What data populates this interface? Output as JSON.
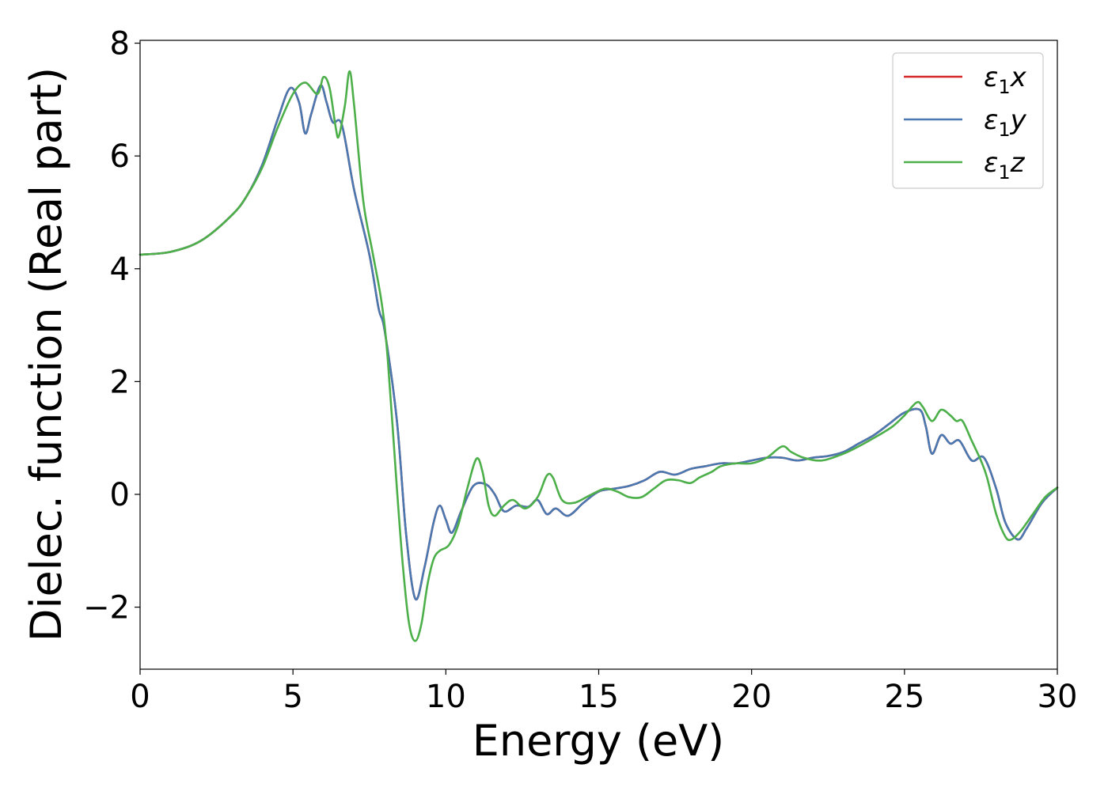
{
  "chart_data": {
    "type": "line",
    "title": "",
    "xlabel": "Energy (eV)",
    "ylabel": "Dielec. function (Real part)",
    "xlim": [
      0,
      30
    ],
    "ylim": [
      -3.1,
      8.05
    ],
    "xticks": [
      0,
      5,
      10,
      15,
      20,
      25,
      30
    ],
    "yticks": [
      8,
      6,
      4,
      2,
      0,
      -2
    ],
    "ytick_labels": [
      "8",
      "6",
      "4",
      "2",
      "0",
      "−2"
    ],
    "grid": false,
    "legend_position": "top-right",
    "series": [
      {
        "name": "ε₁x",
        "legend_main": "ε",
        "legend_sub": "1",
        "legend_tail": "x",
        "color": "#d62728",
        "points": [
          [
            0,
            4.25
          ],
          [
            1,
            4.3
          ],
          [
            2,
            4.5
          ],
          [
            3,
            4.95
          ],
          [
            3.5,
            5.3
          ],
          [
            4,
            5.85
          ],
          [
            4.5,
            6.65
          ],
          [
            4.9,
            7.2
          ],
          [
            5.2,
            6.95
          ],
          [
            5.4,
            6.4
          ],
          [
            5.6,
            6.75
          ],
          [
            5.9,
            7.25
          ],
          [
            6.1,
            6.95
          ],
          [
            6.3,
            6.6
          ],
          [
            6.6,
            6.55
          ],
          [
            7,
            5.4
          ],
          [
            7.5,
            4.25
          ],
          [
            7.8,
            3.3
          ],
          [
            8,
            2.9
          ],
          [
            8.4,
            1.3
          ],
          [
            8.7,
            -0.7
          ],
          [
            9,
            -1.85
          ],
          [
            9.3,
            -1.3
          ],
          [
            9.6,
            -0.5
          ],
          [
            9.8,
            -0.2
          ],
          [
            10,
            -0.45
          ],
          [
            10.2,
            -0.68
          ],
          [
            10.5,
            -0.3
          ],
          [
            10.9,
            0.15
          ],
          [
            11.3,
            0.18
          ],
          [
            11.6,
            0
          ],
          [
            11.9,
            -0.3
          ],
          [
            12.3,
            -0.2
          ],
          [
            12.7,
            -0.22
          ],
          [
            13,
            -0.1
          ],
          [
            13.3,
            -0.35
          ],
          [
            13.6,
            -0.25
          ],
          [
            14,
            -0.38
          ],
          [
            14.5,
            -0.15
          ],
          [
            15,
            0.05
          ],
          [
            15.5,
            0.1
          ],
          [
            16,
            0.15
          ],
          [
            16.5,
            0.25
          ],
          [
            17,
            0.4
          ],
          [
            17.5,
            0.35
          ],
          [
            18,
            0.45
          ],
          [
            18.5,
            0.5
          ],
          [
            19,
            0.55
          ],
          [
            19.5,
            0.55
          ],
          [
            20,
            0.6
          ],
          [
            20.5,
            0.65
          ],
          [
            21,
            0.65
          ],
          [
            21.5,
            0.6
          ],
          [
            22,
            0.65
          ],
          [
            22.5,
            0.68
          ],
          [
            23,
            0.75
          ],
          [
            23.5,
            0.9
          ],
          [
            24,
            1.05
          ],
          [
            24.5,
            1.25
          ],
          [
            25,
            1.45
          ],
          [
            25.5,
            1.5
          ],
          [
            25.7,
            1.2
          ],
          [
            25.9,
            0.72
          ],
          [
            26.2,
            1.05
          ],
          [
            26.5,
            0.9
          ],
          [
            26.8,
            0.95
          ],
          [
            27.2,
            0.6
          ],
          [
            27.6,
            0.65
          ],
          [
            28,
            0.1
          ],
          [
            28.3,
            -0.5
          ],
          [
            28.7,
            -0.8
          ],
          [
            29,
            -0.6
          ],
          [
            29.5,
            -0.15
          ],
          [
            30,
            0.12
          ]
        ]
      },
      {
        "name": "ε₁y",
        "legend_main": "ε",
        "legend_sub": "1",
        "legend_tail": "y",
        "color": "#4a78b0",
        "points": [
          [
            0,
            4.25
          ],
          [
            1,
            4.3
          ],
          [
            2,
            4.5
          ],
          [
            3,
            4.95
          ],
          [
            3.5,
            5.3
          ],
          [
            4,
            5.85
          ],
          [
            4.5,
            6.65
          ],
          [
            4.9,
            7.2
          ],
          [
            5.2,
            6.95
          ],
          [
            5.4,
            6.4
          ],
          [
            5.6,
            6.75
          ],
          [
            5.9,
            7.25
          ],
          [
            6.1,
            6.95
          ],
          [
            6.3,
            6.6
          ],
          [
            6.6,
            6.55
          ],
          [
            7,
            5.4
          ],
          [
            7.5,
            4.25
          ],
          [
            7.8,
            3.3
          ],
          [
            8,
            2.9
          ],
          [
            8.4,
            1.3
          ],
          [
            8.7,
            -0.7
          ],
          [
            9,
            -1.85
          ],
          [
            9.3,
            -1.3
          ],
          [
            9.6,
            -0.5
          ],
          [
            9.8,
            -0.2
          ],
          [
            10,
            -0.45
          ],
          [
            10.2,
            -0.68
          ],
          [
            10.5,
            -0.3
          ],
          [
            10.9,
            0.15
          ],
          [
            11.3,
            0.18
          ],
          [
            11.6,
            0
          ],
          [
            11.9,
            -0.3
          ],
          [
            12.3,
            -0.2
          ],
          [
            12.7,
            -0.22
          ],
          [
            13,
            -0.1
          ],
          [
            13.3,
            -0.35
          ],
          [
            13.6,
            -0.25
          ],
          [
            14,
            -0.38
          ],
          [
            14.5,
            -0.15
          ],
          [
            15,
            0.05
          ],
          [
            15.5,
            0.1
          ],
          [
            16,
            0.15
          ],
          [
            16.5,
            0.25
          ],
          [
            17,
            0.4
          ],
          [
            17.5,
            0.35
          ],
          [
            18,
            0.45
          ],
          [
            18.5,
            0.5
          ],
          [
            19,
            0.55
          ],
          [
            19.5,
            0.55
          ],
          [
            20,
            0.6
          ],
          [
            20.5,
            0.65
          ],
          [
            21,
            0.65
          ],
          [
            21.5,
            0.6
          ],
          [
            22,
            0.65
          ],
          [
            22.5,
            0.68
          ],
          [
            23,
            0.75
          ],
          [
            23.5,
            0.9
          ],
          [
            24,
            1.05
          ],
          [
            24.5,
            1.25
          ],
          [
            25,
            1.45
          ],
          [
            25.5,
            1.5
          ],
          [
            25.7,
            1.2
          ],
          [
            25.9,
            0.72
          ],
          [
            26.2,
            1.05
          ],
          [
            26.5,
            0.9
          ],
          [
            26.8,
            0.95
          ],
          [
            27.2,
            0.6
          ],
          [
            27.6,
            0.65
          ],
          [
            28,
            0.1
          ],
          [
            28.3,
            -0.5
          ],
          [
            28.7,
            -0.8
          ],
          [
            29,
            -0.6
          ],
          [
            29.5,
            -0.15
          ],
          [
            30,
            0.12
          ]
        ]
      },
      {
        "name": "ε₁z",
        "legend_main": "ε",
        "legend_sub": "1",
        "legend_tail": "z",
        "color": "#4daf4a",
        "points": [
          [
            0,
            4.25
          ],
          [
            1,
            4.3
          ],
          [
            2,
            4.5
          ],
          [
            3,
            4.95
          ],
          [
            3.5,
            5.3
          ],
          [
            4,
            5.8
          ],
          [
            4.5,
            6.5
          ],
          [
            5,
            7.1
          ],
          [
            5.4,
            7.3
          ],
          [
            5.8,
            7.1
          ],
          [
            6,
            7.4
          ],
          [
            6.2,
            7.2
          ],
          [
            6.4,
            6.5
          ],
          [
            6.5,
            6.35
          ],
          [
            6.7,
            6.9
          ],
          [
            6.85,
            7.5
          ],
          [
            7,
            6.9
          ],
          [
            7.3,
            5.2
          ],
          [
            7.6,
            4.3
          ],
          [
            7.9,
            3.4
          ],
          [
            8.1,
            2.4
          ],
          [
            8.4,
            0.1
          ],
          [
            8.6,
            -1.3
          ],
          [
            8.8,
            -2.3
          ],
          [
            9,
            -2.6
          ],
          [
            9.2,
            -2.3
          ],
          [
            9.4,
            -1.6
          ],
          [
            9.6,
            -1.15
          ],
          [
            9.8,
            -1
          ],
          [
            10.1,
            -0.9
          ],
          [
            10.4,
            -0.55
          ],
          [
            10.7,
            0.1
          ],
          [
            11,
            0.63
          ],
          [
            11.2,
            0.4
          ],
          [
            11.4,
            -0.2
          ],
          [
            11.6,
            -0.38
          ],
          [
            11.9,
            -0.2
          ],
          [
            12.2,
            -0.1
          ],
          [
            12.6,
            -0.25
          ],
          [
            13,
            -0.05
          ],
          [
            13.3,
            0.33
          ],
          [
            13.5,
            0.3
          ],
          [
            13.8,
            -0.1
          ],
          [
            14.2,
            -0.15
          ],
          [
            14.7,
            -0.02
          ],
          [
            15.2,
            0.1
          ],
          [
            15.6,
            0.05
          ],
          [
            16,
            -0.05
          ],
          [
            16.4,
            -0.05
          ],
          [
            16.8,
            0.1
          ],
          [
            17.2,
            0.25
          ],
          [
            17.6,
            0.25
          ],
          [
            18,
            0.2
          ],
          [
            18.3,
            0.3
          ],
          [
            18.7,
            0.4
          ],
          [
            19,
            0.5
          ],
          [
            19.5,
            0.55
          ],
          [
            20,
            0.55
          ],
          [
            20.5,
            0.65
          ],
          [
            21,
            0.85
          ],
          [
            21.3,
            0.75
          ],
          [
            21.7,
            0.65
          ],
          [
            22.3,
            0.6
          ],
          [
            23,
            0.72
          ],
          [
            23.5,
            0.85
          ],
          [
            24,
            1
          ],
          [
            24.6,
            1.2
          ],
          [
            25,
            1.4
          ],
          [
            25.4,
            1.63
          ],
          [
            25.6,
            1.55
          ],
          [
            25.9,
            1.3
          ],
          [
            26.2,
            1.5
          ],
          [
            26.5,
            1.4
          ],
          [
            26.7,
            1.3
          ],
          [
            26.9,
            1.3
          ],
          [
            27.2,
            0.95
          ],
          [
            27.5,
            0.6
          ],
          [
            27.7,
            0.3
          ],
          [
            28,
            -0.35
          ],
          [
            28.3,
            -0.75
          ],
          [
            28.5,
            -0.8
          ],
          [
            28.8,
            -0.65
          ],
          [
            29.2,
            -0.35
          ],
          [
            29.6,
            -0.05
          ],
          [
            30,
            0.12
          ]
        ]
      }
    ]
  }
}
